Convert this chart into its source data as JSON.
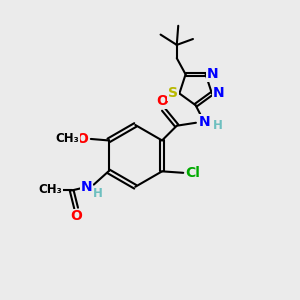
{
  "bg_color": "#ebebeb",
  "atom_colors": {
    "C": "#000000",
    "N": "#0000ff",
    "O": "#ff0000",
    "S": "#b8b800",
    "Cl": "#00aa00",
    "H": "#6dbfbf"
  },
  "bond_color": "#000000",
  "bond_width": 1.5,
  "font_size_atoms": 10,
  "font_size_small": 8.5
}
